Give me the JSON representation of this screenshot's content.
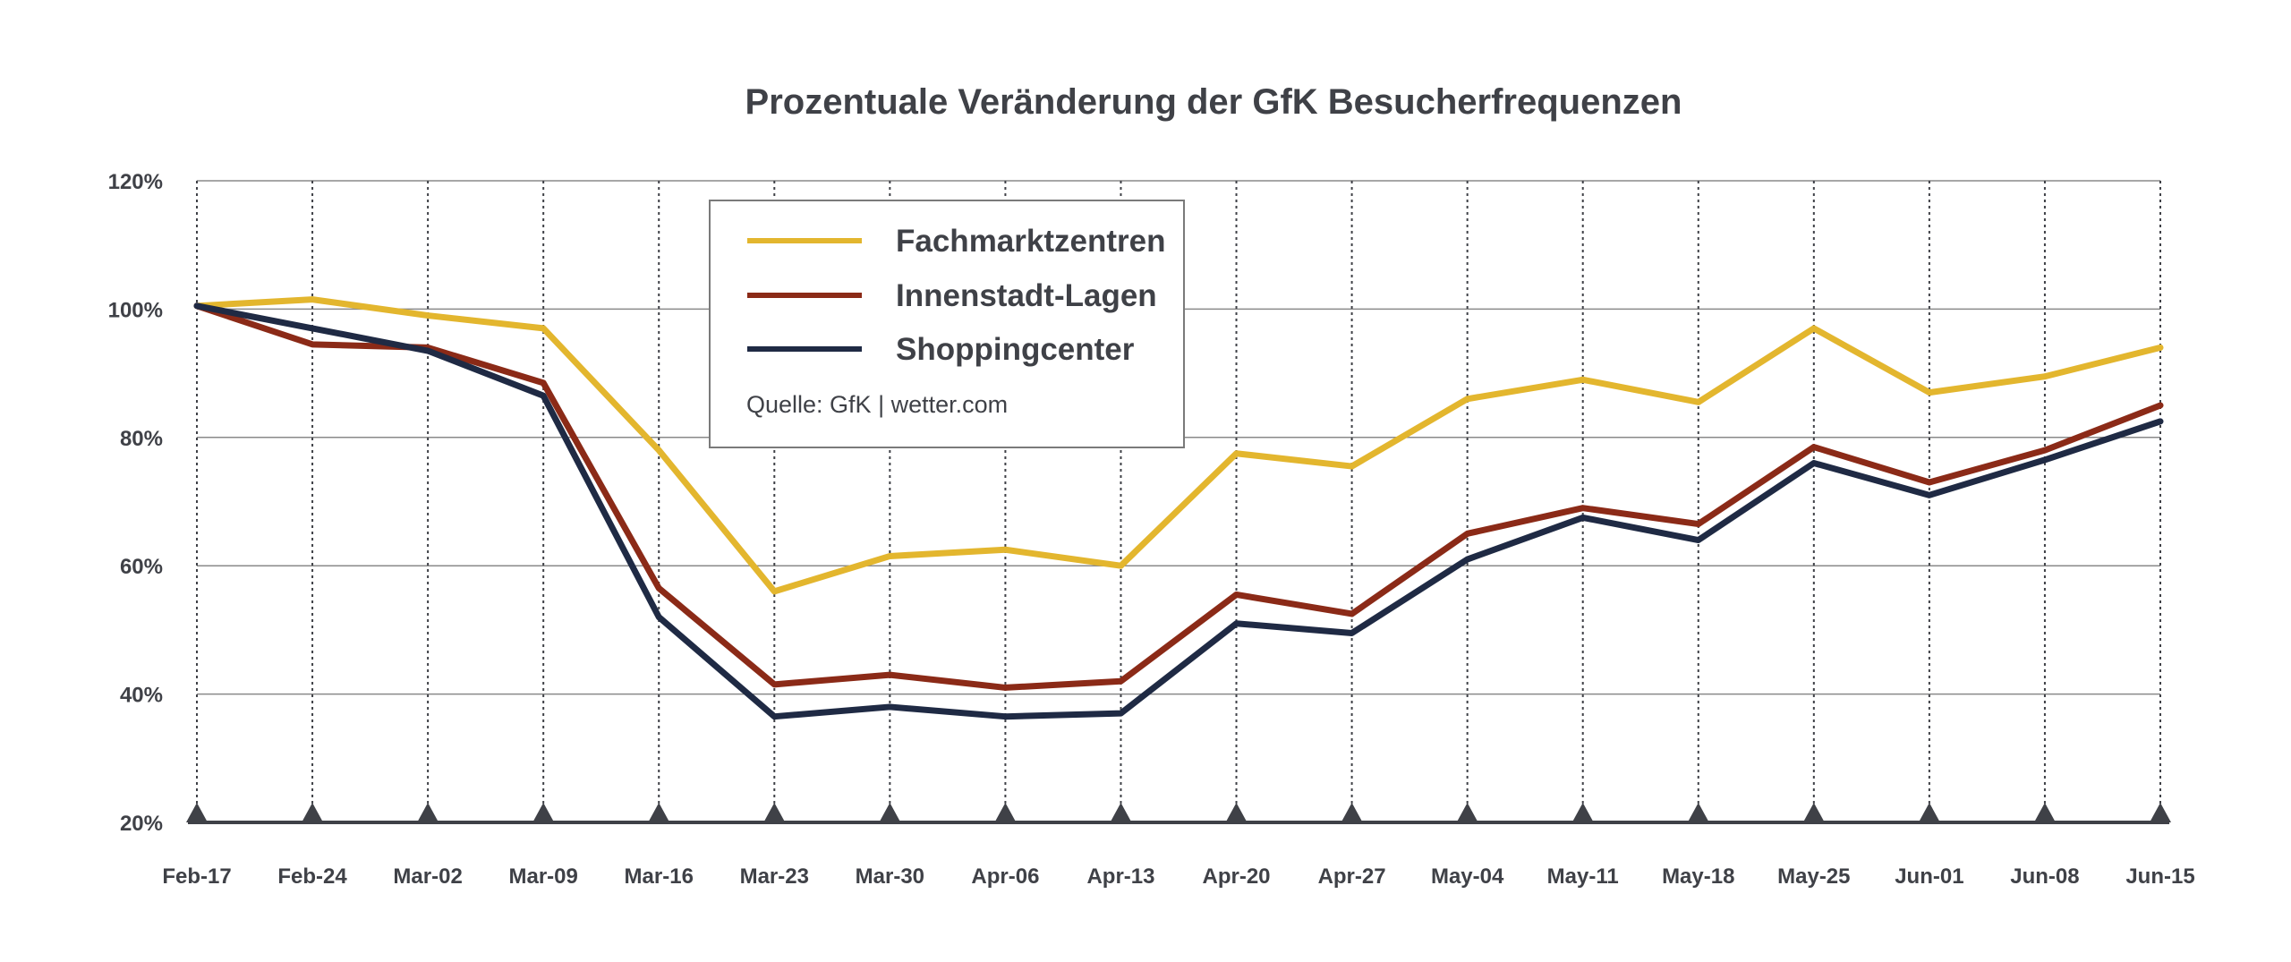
{
  "chart_data": {
    "type": "line",
    "title": "Prozentuale Veränderung der GfK Besucherfrequenzen",
    "xlabel": "",
    "ylabel": "",
    "ylim": [
      20,
      120
    ],
    "yticks": [
      20,
      40,
      60,
      80,
      100,
      120
    ],
    "ytick_labels": [
      "20%",
      "40%",
      "60%",
      "80%",
      "100%",
      "120%"
    ],
    "categories": [
      "Feb-17",
      "Feb-24",
      "Mar-02",
      "Mar-09",
      "Mar-16",
      "Mar-23",
      "Mar-30",
      "Apr-06",
      "Apr-13",
      "Apr-20",
      "Apr-27",
      "May-04",
      "May-11",
      "May-18",
      "May-25",
      "Jun-01",
      "Jun-08",
      "Jun-15"
    ],
    "series": [
      {
        "name": "Fachmarktzentren",
        "color": "#e3b62e",
        "values": [
          100.5,
          101.5,
          99,
          97,
          78,
          56,
          61.5,
          62.5,
          60,
          77.5,
          75.5,
          86,
          89,
          85.5,
          97,
          87,
          89.5,
          94
        ]
      },
      {
        "name": "Innenstadt-Lagen",
        "color": "#8b2a17",
        "values": [
          100.5,
          94.5,
          94,
          88.5,
          56.5,
          41.5,
          43,
          41,
          42,
          55.5,
          52.5,
          65,
          69,
          66.5,
          78.5,
          73,
          78,
          85
        ]
      },
      {
        "name": "Shoppingcenter",
        "color": "#1f2a44",
        "values": [
          100.5,
          97,
          93.5,
          86.5,
          52,
          36.5,
          38,
          36.5,
          37,
          51,
          49.5,
          61,
          67.5,
          64,
          76,
          71,
          76.5,
          82.5
        ]
      }
    ],
    "grid": true,
    "legend_position": "top-center",
    "source": "Quelle: GfK | wetter.com"
  }
}
